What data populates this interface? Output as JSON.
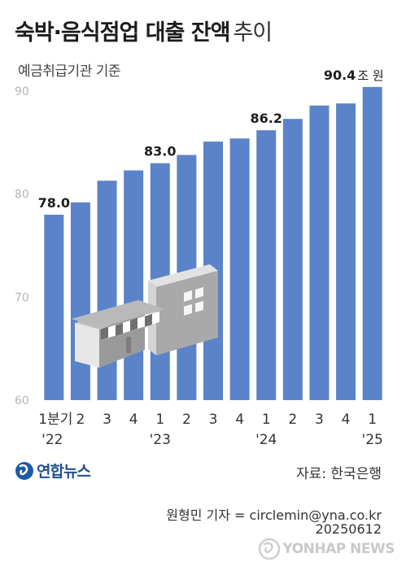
{
  "title": {
    "main": "숙박·음식점업 대출 잔액",
    "sub": "추이"
  },
  "subtitle": "예금취급기관 기준",
  "chart_data": {
    "type": "bar",
    "categories": [
      "1분기 '22",
      "2",
      "3",
      "4",
      "1 '23",
      "2",
      "3",
      "4",
      "1 '24",
      "2",
      "3",
      "4",
      "1 '25"
    ],
    "x_tick_labels": [
      {
        "line1": "1분기",
        "line2": "'22"
      },
      {
        "line1": "2",
        "line2": ""
      },
      {
        "line1": "3",
        "line2": ""
      },
      {
        "line1": "4",
        "line2": ""
      },
      {
        "line1": "1",
        "line2": "'23"
      },
      {
        "line1": "2",
        "line2": ""
      },
      {
        "line1": "3",
        "line2": ""
      },
      {
        "line1": "4",
        "line2": ""
      },
      {
        "line1": "1",
        "line2": "'24"
      },
      {
        "line1": "2",
        "line2": ""
      },
      {
        "line1": "3",
        "line2": ""
      },
      {
        "line1": "4",
        "line2": ""
      },
      {
        "line1": "1",
        "line2": "'25"
      }
    ],
    "values": [
      78.0,
      79.2,
      81.3,
      82.3,
      83.0,
      83.8,
      85.1,
      85.4,
      86.2,
      87.3,
      88.6,
      88.8,
      90.4
    ],
    "data_labels": [
      {
        "index": 0,
        "text": "78.0"
      },
      {
        "index": 4,
        "text": "83.0"
      },
      {
        "index": 8,
        "text": "86.2"
      },
      {
        "index": 12,
        "text": "90.4",
        "unit": "조 원"
      }
    ],
    "ylim": [
      60,
      90
    ],
    "yticks": [
      60,
      70,
      80,
      90
    ],
    "grid": false,
    "bar_color": "#5b83c9",
    "xlabel": "",
    "ylabel": ""
  },
  "source": "자료: 한국은행",
  "credit": "원형민 기자 = circlemin@yna.co.kr",
  "date": "20250612",
  "logo": {
    "text": "연합뉴스",
    "icon": "yonhap-logo-icon"
  },
  "agency": {
    "text": "YONHAP NEWS",
    "icon": "yonhap-emblem-icon"
  }
}
